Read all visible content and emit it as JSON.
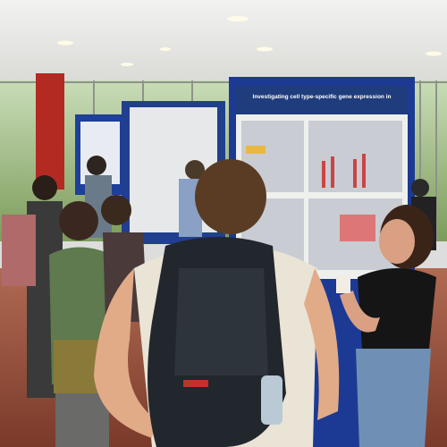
{
  "poster": {
    "title": "Investigating cell type-specific gene expression in"
  }
}
